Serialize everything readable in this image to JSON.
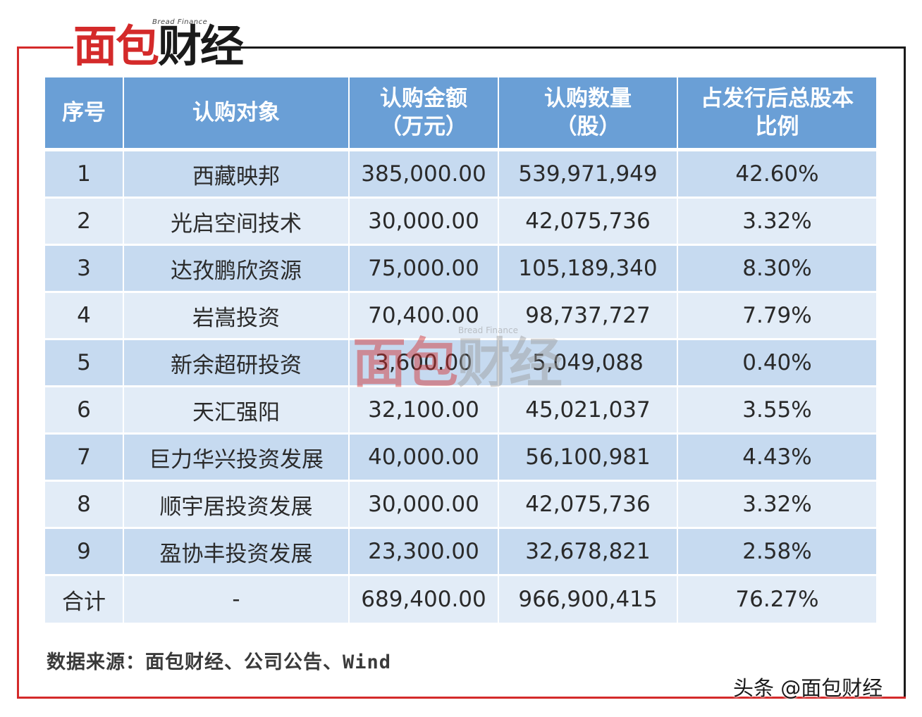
{
  "logo": {
    "text_red": "面包",
    "text_dark": "财经",
    "subtitle": "Bread Finance"
  },
  "colors": {
    "header_bg": "#6a9fd6",
    "row_dark": "#c6daf0",
    "row_light": "#e2ecf7",
    "accent_red": "#d42a2a"
  },
  "chart_data": {
    "type": "table",
    "columns": [
      {
        "line1": "序号",
        "line2": ""
      },
      {
        "line1": "认购对象",
        "line2": ""
      },
      {
        "line1": "认购金额",
        "line2": "（万元）"
      },
      {
        "line1": "认购数量",
        "line2": "（股）"
      },
      {
        "line1": "占发行后总股本",
        "line2": "比例"
      }
    ],
    "rows": [
      [
        "1",
        "西藏映邦",
        "385,000.00",
        "539,971,949",
        "42.60%"
      ],
      [
        "2",
        "光启空间技术",
        "30,000.00",
        "42,075,736",
        "3.32%"
      ],
      [
        "3",
        "达孜鹏欣资源",
        "75,000.00",
        "105,189,340",
        "8.30%"
      ],
      [
        "4",
        "岩嵩投资",
        "70,400.00",
        "98,737,727",
        "7.79%"
      ],
      [
        "5",
        "新余超研投资",
        "3,600.00",
        "5,049,088",
        "0.40%"
      ],
      [
        "6",
        "天汇强阳",
        "32,100.00",
        "45,021,037",
        "3.55%"
      ],
      [
        "7",
        "巨力华兴投资发展",
        "40,000.00",
        "56,100,981",
        "4.43%"
      ],
      [
        "8",
        "顺宇居投资发展",
        "30,000.00",
        "42,075,736",
        "3.32%"
      ],
      [
        "9",
        "盈协丰投资发展",
        "23,300.00",
        "32,678,821",
        "2.58%"
      ]
    ],
    "total": [
      "合计",
      "-",
      "689,400.00",
      "966,900,415",
      "76.27%"
    ]
  },
  "source": "数据来源：面包财经、公司公告、Wind",
  "watermark": {
    "text_red": "面包",
    "text_dark": "财经",
    "subtitle": "Bread Finance"
  },
  "attribution": "头条 @面包财经"
}
